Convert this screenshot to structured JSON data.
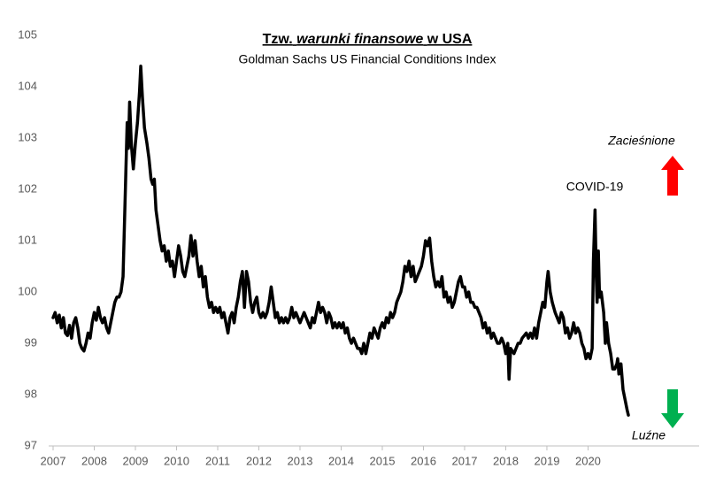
{
  "chart_data": {
    "type": "line",
    "title": {
      "prefix": "Tzw.",
      "italic": "warunki finansowe",
      "suffix": "w USA"
    },
    "subtitle": "Goldman Sachs US Financial Conditions Index",
    "annotations": {
      "covid": "COVID-19",
      "up": "Zacieśnione",
      "down": "Luźne"
    },
    "color": "#000000",
    "xlim": [
      2007,
      2022.7
    ],
    "xticks": [
      2007,
      2008,
      2009,
      2010,
      2011,
      2012,
      2013,
      2014,
      2015,
      2016,
      2017,
      2018,
      2019,
      2020
    ],
    "ylim": [
      97,
      105
    ],
    "yticks": [
      97,
      98,
      99,
      100,
      101,
      102,
      103,
      104,
      105
    ],
    "x": [
      2007.0,
      2007.05,
      2007.1,
      2007.15,
      2007.2,
      2007.25,
      2007.3,
      2007.35,
      2007.4,
      2007.45,
      2007.5,
      2007.55,
      2007.6,
      2007.65,
      2007.7,
      2007.75,
      2007.8,
      2007.85,
      2007.9,
      2007.95,
      2008.0,
      2008.05,
      2008.1,
      2008.15,
      2008.2,
      2008.25,
      2008.3,
      2008.35,
      2008.4,
      2008.45,
      2008.5,
      2008.55,
      2008.6,
      2008.65,
      2008.7,
      2008.75,
      2008.78,
      2008.8,
      2008.83,
      2008.86,
      2008.9,
      2008.95,
      2009.0,
      2009.05,
      2009.1,
      2009.13,
      2009.17,
      2009.22,
      2009.28,
      2009.33,
      2009.38,
      2009.42,
      2009.46,
      2009.5,
      2009.55,
      2009.6,
      2009.65,
      2009.7,
      2009.75,
      2009.8,
      2009.85,
      2009.9,
      2009.95,
      2010.0,
      2010.05,
      2010.1,
      2010.15,
      2010.2,
      2010.25,
      2010.3,
      2010.35,
      2010.4,
      2010.45,
      2010.5,
      2010.55,
      2010.6,
      2010.65,
      2010.7,
      2010.75,
      2010.8,
      2010.85,
      2010.9,
      2010.95,
      2011.0,
      2011.05,
      2011.1,
      2011.15,
      2011.2,
      2011.25,
      2011.3,
      2011.35,
      2011.4,
      2011.45,
      2011.5,
      2011.55,
      2011.6,
      2011.65,
      2011.7,
      2011.75,
      2011.8,
      2011.85,
      2011.9,
      2011.95,
      2012.0,
      2012.05,
      2012.1,
      2012.15,
      2012.2,
      2012.25,
      2012.3,
      2012.35,
      2012.4,
      2012.45,
      2012.5,
      2012.55,
      2012.6,
      2012.65,
      2012.7,
      2012.75,
      2012.8,
      2012.85,
      2012.9,
      2012.95,
      2013.0,
      2013.05,
      2013.1,
      2013.15,
      2013.2,
      2013.25,
      2013.3,
      2013.35,
      2013.4,
      2013.45,
      2013.5,
      2013.55,
      2013.6,
      2013.65,
      2013.7,
      2013.75,
      2013.8,
      2013.85,
      2013.9,
      2013.95,
      2014.0,
      2014.05,
      2014.1,
      2014.15,
      2014.2,
      2014.25,
      2014.3,
      2014.35,
      2014.4,
      2014.45,
      2014.5,
      2014.55,
      2014.6,
      2014.65,
      2014.7,
      2014.75,
      2014.8,
      2014.85,
      2014.9,
      2014.95,
      2015.0,
      2015.05,
      2015.1,
      2015.15,
      2015.2,
      2015.25,
      2015.3,
      2015.35,
      2015.4,
      2015.45,
      2015.5,
      2015.55,
      2015.6,
      2015.65,
      2015.7,
      2015.75,
      2015.8,
      2015.85,
      2015.9,
      2015.95,
      2016.0,
      2016.05,
      2016.1,
      2016.15,
      2016.2,
      2016.25,
      2016.3,
      2016.35,
      2016.4,
      2016.45,
      2016.5,
      2016.55,
      2016.6,
      2016.65,
      2016.7,
      2016.75,
      2016.8,
      2016.85,
      2016.9,
      2016.95,
      2017.0,
      2017.05,
      2017.1,
      2017.15,
      2017.2,
      2017.25,
      2017.3,
      2017.35,
      2017.4,
      2017.45,
      2017.5,
      2017.55,
      2017.6,
      2017.65,
      2017.7,
      2017.75,
      2017.8,
      2017.85,
      2017.9,
      2017.95,
      2018.0,
      2018.05,
      2018.08,
      2018.12,
      2018.2,
      2018.3,
      2018.35,
      2018.4,
      2018.5,
      2018.55,
      2018.6,
      2018.65,
      2018.7,
      2018.75,
      2018.8,
      2018.85,
      2018.9,
      2018.95,
      2019.0,
      2019.03,
      2019.08,
      2019.13,
      2019.2,
      2019.25,
      2019.3,
      2019.35,
      2019.4,
      2019.45,
      2019.5,
      2019.55,
      2019.6,
      2019.65,
      2019.7,
      2019.75,
      2019.8,
      2019.85,
      2019.9,
      2019.95,
      2020.0,
      2020.05,
      2020.1,
      2020.13,
      2020.17,
      2020.2,
      2020.22,
      2020.25,
      2020.28,
      2020.32,
      2020.38,
      2020.42,
      2020.45,
      2020.5,
      2020.55,
      2020.6,
      2020.65,
      2020.7,
      2020.72,
      2020.75,
      2020.8,
      2020.85,
      2020.9,
      2020.95,
      2020.98
    ],
    "values": [
      99.5,
      99.6,
      99.4,
      99.55,
      99.3,
      99.5,
      99.2,
      99.15,
      99.35,
      99.1,
      99.4,
      99.5,
      99.3,
      99.0,
      98.9,
      98.85,
      99.0,
      99.2,
      99.1,
      99.4,
      99.6,
      99.45,
      99.7,
      99.5,
      99.4,
      99.5,
      99.3,
      99.2,
      99.4,
      99.6,
      99.8,
      99.9,
      99.9,
      100.0,
      100.3,
      101.8,
      102.7,
      103.3,
      102.8,
      103.7,
      102.9,
      102.4,
      102.9,
      103.3,
      103.9,
      104.4,
      103.8,
      103.2,
      102.9,
      102.6,
      102.2,
      102.1,
      102.2,
      101.6,
      101.3,
      101.0,
      100.8,
      100.9,
      100.6,
      100.8,
      100.5,
      100.6,
      100.3,
      100.6,
      100.9,
      100.7,
      100.4,
      100.3,
      100.5,
      100.7,
      101.1,
      100.7,
      101.0,
      100.6,
      100.3,
      100.5,
      100.1,
      100.3,
      99.9,
      99.7,
      99.8,
      99.6,
      99.7,
      99.6,
      99.7,
      99.5,
      99.6,
      99.4,
      99.2,
      99.5,
      99.6,
      99.4,
      99.7,
      99.9,
      100.2,
      100.4,
      99.7,
      100.4,
      100.2,
      99.8,
      99.6,
      99.8,
      99.9,
      99.6,
      99.5,
      99.6,
      99.5,
      99.6,
      99.8,
      100.1,
      99.8,
      99.5,
      99.6,
      99.4,
      99.5,
      99.4,
      99.5,
      99.4,
      99.5,
      99.7,
      99.5,
      99.6,
      99.5,
      99.4,
      99.5,
      99.6,
      99.5,
      99.4,
      99.3,
      99.5,
      99.4,
      99.6,
      99.8,
      99.6,
      99.7,
      99.6,
      99.4,
      99.6,
      99.5,
      99.3,
      99.4,
      99.3,
      99.4,
      99.3,
      99.4,
      99.2,
      99.3,
      99.1,
      99.0,
      99.1,
      99.0,
      98.9,
      98.9,
      98.8,
      99.0,
      98.8,
      99.0,
      99.2,
      99.1,
      99.3,
      99.2,
      99.1,
      99.3,
      99.4,
      99.3,
      99.5,
      99.4,
      99.6,
      99.5,
      99.6,
      99.8,
      99.9,
      100.0,
      100.2,
      100.5,
      100.4,
      100.6,
      100.3,
      100.5,
      100.2,
      100.3,
      100.4,
      100.5,
      100.7,
      101.0,
      100.9,
      101.05,
      100.6,
      100.3,
      100.1,
      100.2,
      100.1,
      100.3,
      99.9,
      100.0,
      99.8,
      99.9,
      99.7,
      99.8,
      100.0,
      100.2,
      100.3,
      100.1,
      100.1,
      99.9,
      100.0,
      99.8,
      99.8,
      99.7,
      99.7,
      99.6,
      99.5,
      99.3,
      99.4,
      99.2,
      99.3,
      99.1,
      99.2,
      99.1,
      99.0,
      99.0,
      99.1,
      99.0,
      98.8,
      99.0,
      98.3,
      98.9,
      98.8,
      99.0,
      99.0,
      99.1,
      99.2,
      99.1,
      99.2,
      99.1,
      99.3,
      99.1,
      99.4,
      99.6,
      99.8,
      99.7,
      100.2,
      100.4,
      100.0,
      99.8,
      99.6,
      99.5,
      99.4,
      99.6,
      99.5,
      99.2,
      99.3,
      99.1,
      99.2,
      99.4,
      99.2,
      99.3,
      99.2,
      99.0,
      98.9,
      98.7,
      98.8,
      98.7,
      98.9,
      100.6,
      101.6,
      100.3,
      99.8,
      100.8,
      99.9,
      100.0,
      99.6,
      99.0,
      99.4,
      99.0,
      98.8,
      98.5,
      98.5,
      98.6,
      98.7,
      98.4,
      98.6,
      98.1,
      97.9,
      97.7,
      97.6
    ]
  }
}
